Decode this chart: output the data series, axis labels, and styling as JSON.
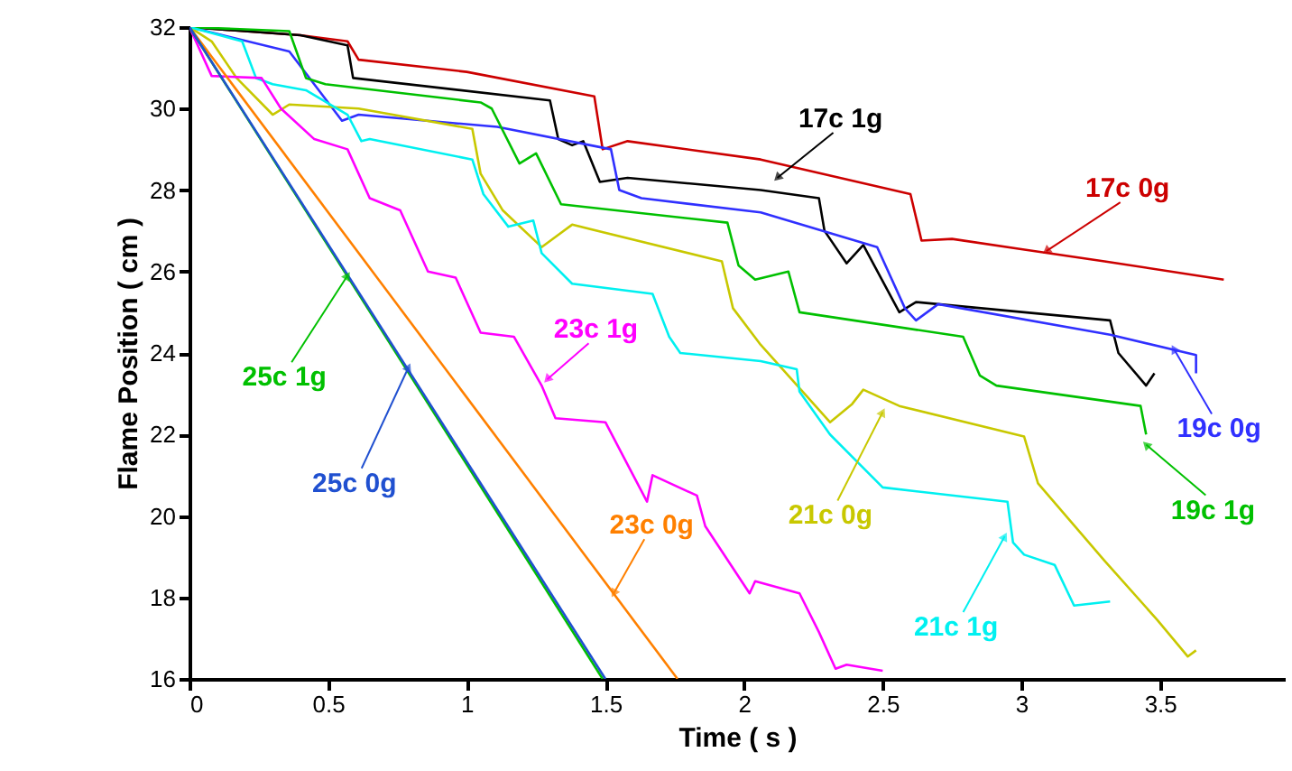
{
  "chart_data": {
    "type": "line",
    "xlabel": "Time ( s )",
    "ylabel": "Flame Position ( cm )",
    "xlim": [
      0,
      3.95
    ],
    "ylim": [
      16,
      32
    ],
    "xticks": [
      0,
      0.5,
      1,
      1.5,
      2,
      2.5,
      3,
      3.5
    ],
    "yticks": [
      16,
      18,
      20,
      22,
      24,
      26,
      28,
      30,
      32
    ],
    "grid": false,
    "marker": "none",
    "line_style": "solid",
    "series": [
      {
        "color": "#cc0000",
        "x": [
          0,
          0.4,
          0.57,
          0.61,
          1.0,
          1.46,
          1.49,
          1.58,
          2.06,
          2.6,
          2.64,
          2.75,
          3.0,
          3.3,
          3.73
        ],
        "values": [
          32,
          31.8,
          31.65,
          31.2,
          30.9,
          30.3,
          29.0,
          29.2,
          28.75,
          27.9,
          26.76,
          26.8,
          26.55,
          26.25,
          25.8
        ]
      },
      {
        "color": "#000000",
        "x": [
          0,
          0.4,
          0.57,
          0.59,
          1.3,
          1.33,
          1.38,
          1.42,
          1.48,
          1.58,
          2.06,
          2.27,
          2.29,
          2.37,
          2.43,
          2.56,
          2.62,
          3.32,
          3.35,
          3.45,
          3.48
        ],
        "values": [
          32,
          31.8,
          31.55,
          30.75,
          30.2,
          29.25,
          29.1,
          29.2,
          28.2,
          28.3,
          28.0,
          27.8,
          27.0,
          26.2,
          26.65,
          25.0,
          25.25,
          24.8,
          24.0,
          23.2,
          23.5
        ]
      },
      {
        "color": "#3030ff",
        "x": [
          0,
          0.36,
          0.55,
          0.61,
          1.11,
          1.52,
          1.55,
          1.63,
          2.06,
          2.48,
          2.58,
          2.62,
          2.7,
          3.32,
          3.63,
          3.63
        ],
        "values": [
          32,
          31.4,
          29.7,
          29.85,
          29.55,
          29.0,
          28.0,
          27.8,
          27.45,
          26.6,
          25.1,
          24.8,
          25.2,
          24.45,
          23.95,
          23.5
        ]
      },
      {
        "color": "#00c000",
        "x": [
          0,
          0.36,
          0.42,
          0.49,
          1.05,
          1.09,
          1.19,
          1.25,
          1.34,
          1.94,
          1.98,
          2.04,
          2.16,
          2.2,
          2.79,
          2.85,
          2.91,
          3.43,
          3.45
        ],
        "values": [
          32,
          31.9,
          30.75,
          30.6,
          30.15,
          30.0,
          28.65,
          28.9,
          27.65,
          27.2,
          26.15,
          25.8,
          26.0,
          25.0,
          24.4,
          23.45,
          23.2,
          22.7,
          22.0
        ]
      },
      {
        "color": "#c8c800",
        "x": [
          0,
          0.08,
          0.17,
          0.3,
          0.36,
          0.61,
          1.02,
          1.05,
          1.13,
          1.27,
          1.38,
          1.92,
          1.96,
          2.06,
          2.31,
          2.39,
          2.43,
          2.56,
          3.01,
          3.06,
          3.3,
          3.49,
          3.6,
          3.63
        ],
        "values": [
          32,
          31.65,
          30.75,
          29.85,
          30.1,
          30.0,
          29.5,
          28.4,
          27.5,
          26.6,
          27.15,
          26.25,
          25.1,
          24.2,
          22.3,
          22.75,
          23.1,
          22.7,
          21.95,
          20.8,
          18.9,
          17.45,
          16.55,
          16.7
        ]
      },
      {
        "color": "#00f0f0",
        "x": [
          0,
          0.19,
          0.24,
          0.3,
          0.42,
          0.57,
          0.62,
          0.65,
          1.02,
          1.06,
          1.15,
          1.24,
          1.27,
          1.38,
          1.67,
          1.73,
          1.77,
          2.06,
          2.19,
          2.2,
          2.31,
          2.5,
          2.95,
          2.97,
          3.01,
          3.12,
          3.19,
          3.32
        ],
        "values": [
          32,
          31.65,
          30.75,
          30.6,
          30.45,
          29.85,
          29.2,
          29.25,
          28.75,
          27.9,
          27.1,
          27.25,
          26.45,
          25.7,
          25.45,
          24.4,
          24.0,
          23.8,
          23.6,
          23.05,
          22.0,
          20.7,
          20.35,
          19.35,
          19.05,
          18.8,
          17.8,
          17.9
        ]
      },
      {
        "color": "#ff00ff",
        "x": [
          0,
          0.08,
          0.26,
          0.33,
          0.45,
          0.57,
          0.65,
          0.76,
          0.86,
          0.96,
          1.05,
          1.17,
          1.27,
          1.32,
          1.5,
          1.65,
          1.67,
          1.83,
          1.86,
          2.02,
          2.04,
          2.2,
          2.27,
          2.33,
          2.37,
          2.5
        ],
        "values": [
          32,
          30.8,
          30.75,
          30.0,
          29.25,
          29.0,
          27.8,
          27.5,
          26.0,
          25.85,
          24.5,
          24.4,
          23.2,
          22.4,
          22.3,
          20.35,
          21.0,
          20.5,
          19.75,
          18.1,
          18.4,
          18.1,
          17.15,
          16.25,
          16.35,
          16.2
        ]
      },
      {
        "color": "#ff8000",
        "x": [
          0,
          1.76
        ],
        "values": [
          32,
          16
        ]
      },
      {
        "color": "#00c000",
        "x": [
          0,
          1.49
        ],
        "values": [
          32,
          16
        ]
      },
      {
        "color": "#2050d0",
        "x": [
          0,
          1.5
        ],
        "values": [
          32,
          16
        ]
      }
    ],
    "annotations": [
      {
        "text": "17c 0g",
        "x": 3.09,
        "y": 26.5
      },
      {
        "text": "17c 1g",
        "x": 2.12,
        "y": 28.3
      },
      {
        "text": "19c 0g",
        "x": 3.55,
        "y": 24.1
      },
      {
        "text": "19c 1g",
        "x": 3.45,
        "y": 21.75
      },
      {
        "text": "21c 0g",
        "x": 2.5,
        "y": 22.55
      },
      {
        "text": "21c 1g",
        "x": 2.94,
        "y": 19.5
      },
      {
        "text": "23c 1g",
        "x": 1.29,
        "y": 23.35
      },
      {
        "text": "23c 0g",
        "x": 1.53,
        "y": 18.1
      },
      {
        "text": "25c 1g",
        "x": 0.57,
        "y": 25.9
      },
      {
        "text": "25c 0g",
        "x": 0.79,
        "y": 23.65
      }
    ]
  }
}
